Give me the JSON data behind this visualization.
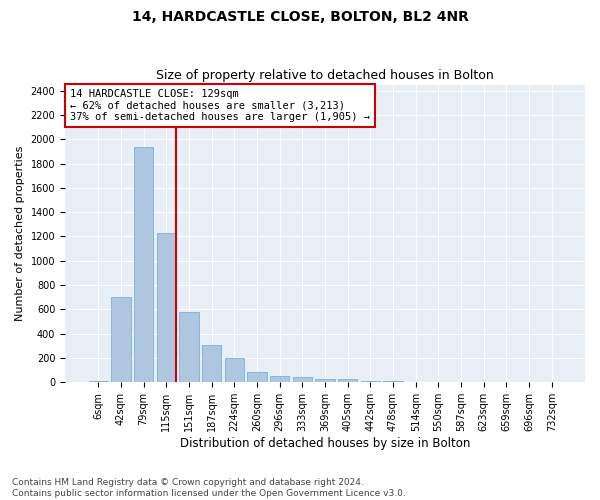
{
  "title": "14, HARDCASTLE CLOSE, BOLTON, BL2 4NR",
  "subtitle": "Size of property relative to detached houses in Bolton",
  "xlabel": "Distribution of detached houses by size in Bolton",
  "ylabel": "Number of detached properties",
  "categories": [
    "6sqm",
    "42sqm",
    "79sqm",
    "115sqm",
    "151sqm",
    "187sqm",
    "224sqm",
    "260sqm",
    "296sqm",
    "333sqm",
    "369sqm",
    "405sqm",
    "442sqm",
    "478sqm",
    "514sqm",
    "550sqm",
    "587sqm",
    "623sqm",
    "659sqm",
    "696sqm",
    "732sqm"
  ],
  "values": [
    15,
    700,
    1940,
    1230,
    580,
    305,
    200,
    85,
    50,
    40,
    30,
    25,
    10,
    8,
    5,
    5,
    3,
    2,
    2,
    1,
    1
  ],
  "bar_color": "#aec6e0",
  "bar_edgecolor": "#6aaad4",
  "vline_color": "#cc0000",
  "annotation_text": "14 HARDCASTLE CLOSE: 129sqm\n← 62% of detached houses are smaller (3,213)\n37% of semi-detached houses are larger (1,905) →",
  "annotation_box_facecolor": "#ffffff",
  "annotation_box_edgecolor": "#cc0000",
  "ylim": [
    0,
    2450
  ],
  "yticks": [
    0,
    200,
    400,
    600,
    800,
    1000,
    1200,
    1400,
    1600,
    1800,
    2000,
    2200,
    2400
  ],
  "grid_color": "#ffffff",
  "bg_color": "#e8eef5",
  "footer": "Contains HM Land Registry data © Crown copyright and database right 2024.\nContains public sector information licensed under the Open Government Licence v3.0.",
  "title_fontsize": 10,
  "subtitle_fontsize": 9,
  "xlabel_fontsize": 8.5,
  "ylabel_fontsize": 8,
  "tick_fontsize": 7,
  "annotation_fontsize": 7.5,
  "footer_fontsize": 6.5
}
